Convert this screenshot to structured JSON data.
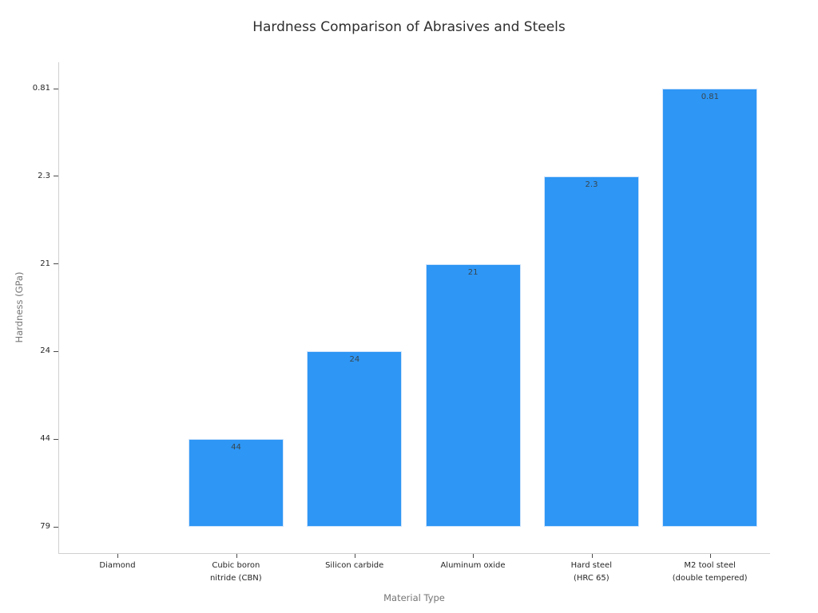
{
  "chart_data": {
    "type": "bar",
    "title": "Hardness Comparison of Abrasives and Steels",
    "xlabel": "Material Type",
    "ylabel": "Hardness (GPa)",
    "y_axis_categorical": true,
    "y_ticks_bottom_to_top": [
      "79",
      "44",
      "24",
      "21",
      "2.3",
      "0.81"
    ],
    "bar_color": "#2e96f5",
    "grid": false,
    "legend": false,
    "bars": [
      {
        "label_lines": [
          "Diamond"
        ],
        "value": "79",
        "display_label": ""
      },
      {
        "label_lines": [
          "Cubic boron",
          "nitride (CBN)"
        ],
        "value": "44",
        "display_label": "44"
      },
      {
        "label_lines": [
          "Silicon carbide"
        ],
        "value": "24",
        "display_label": "24"
      },
      {
        "label_lines": [
          "Aluminum oxide"
        ],
        "value": "21",
        "display_label": "21"
      },
      {
        "label_lines": [
          "Hard steel",
          "(HRC 65)"
        ],
        "value": "2.3",
        "display_label": "2.3"
      },
      {
        "label_lines": [
          "M2 tool steel",
          "(double tempered)"
        ],
        "value": "0.81",
        "display_label": "0.81"
      }
    ]
  }
}
